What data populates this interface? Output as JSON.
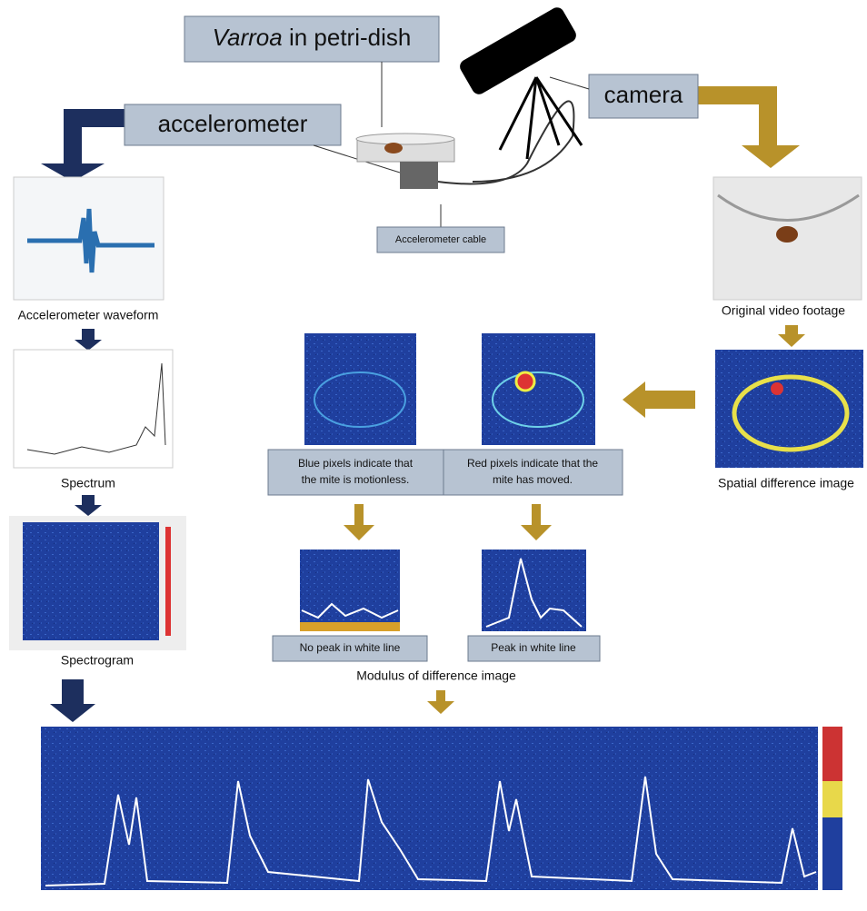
{
  "header": {
    "petri_dish": {
      "italic": "Varroa",
      "rest": " in petri-dish"
    },
    "accelerometer": "accelerometer",
    "camera": "camera",
    "cable": "Accelerometer cable"
  },
  "left_column": {
    "waveform": "Accelerometer waveform",
    "spectrum": "Spectrum",
    "spectrogram": "Spectrogram"
  },
  "right_column": {
    "video": "Original video footage",
    "spatial": "Spatial difference image"
  },
  "middle": {
    "blue_note": [
      "Blue pixels indicate that",
      "the mite is motionless."
    ],
    "red_note": [
      "Red pixels indicate that the",
      "mite has moved."
    ],
    "no_peak": "No peak in white line",
    "peak": "Peak in white line",
    "modulus": "Modulus of difference image"
  }
}
